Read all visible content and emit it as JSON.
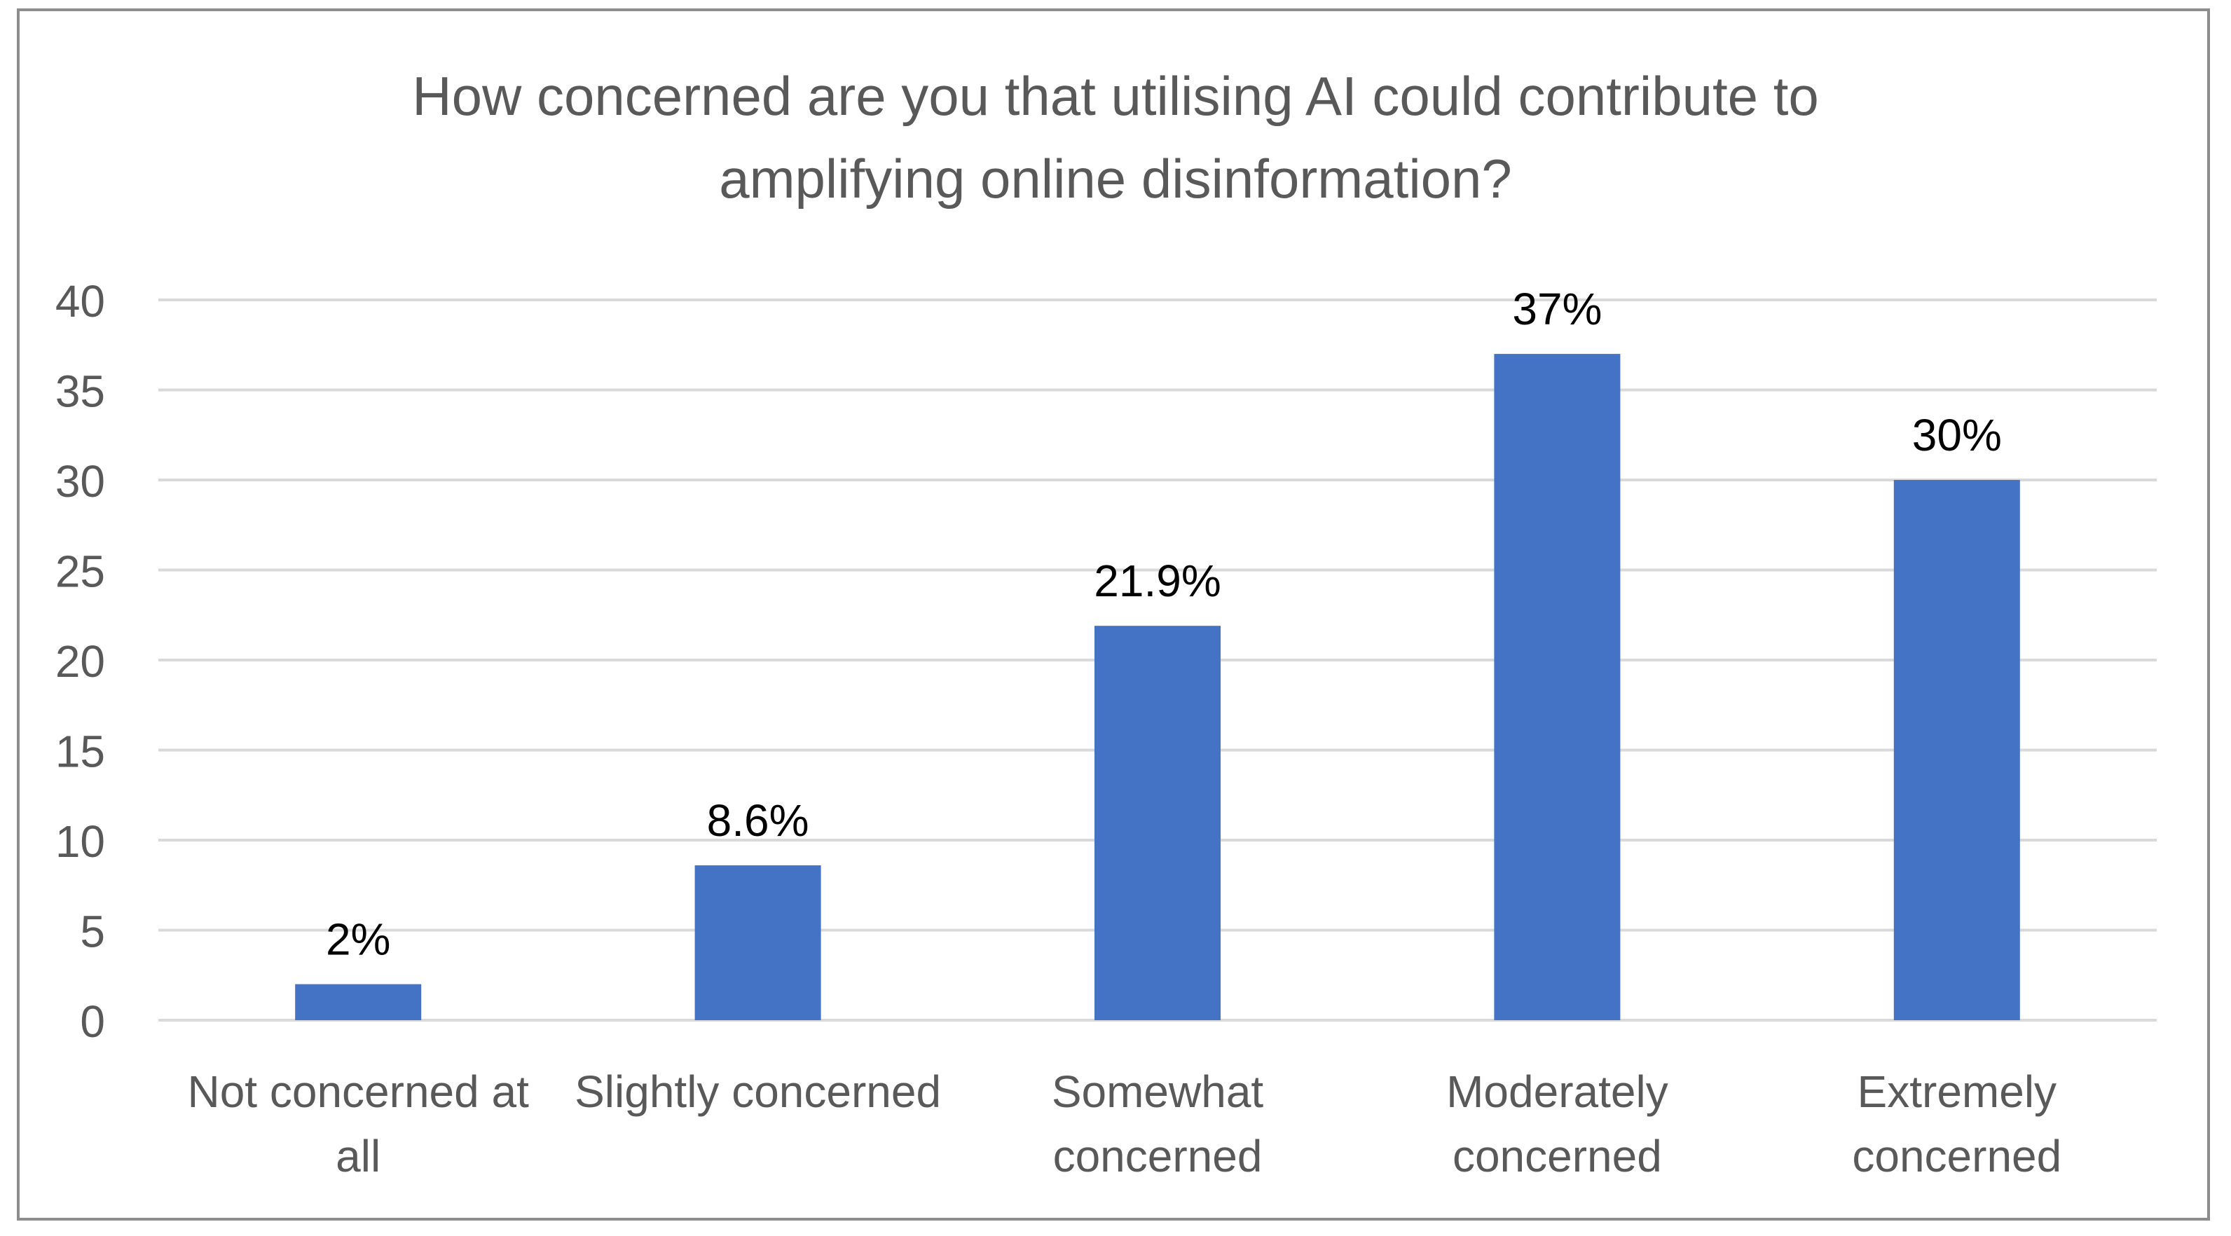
{
  "chart_data": {
    "type": "bar",
    "title": "How concerned are you that utilising AI could contribute to\namplifying online disinformation?",
    "categories": [
      [
        "Not concerned at",
        "all"
      ],
      [
        "Slightly concerned"
      ],
      [
        "Somewhat",
        "concerned"
      ],
      [
        "Moderately",
        "concerned"
      ],
      [
        "Extremely",
        "concerned"
      ]
    ],
    "values": [
      2,
      8.6,
      21.9,
      37,
      30
    ],
    "data_labels": [
      "2%",
      "8.6%",
      "21.9%",
      "37%",
      "30%"
    ],
    "yticks": [
      "0",
      "5",
      "10",
      "15",
      "20",
      "25",
      "30",
      "35",
      "40"
    ],
    "ylim": [
      0,
      40
    ],
    "grid": true,
    "legend": "none",
    "bar_color": "#4472c4",
    "grid_color": "#d9d9d9",
    "axis_text_color": "#595959",
    "label_color": "#000000"
  }
}
